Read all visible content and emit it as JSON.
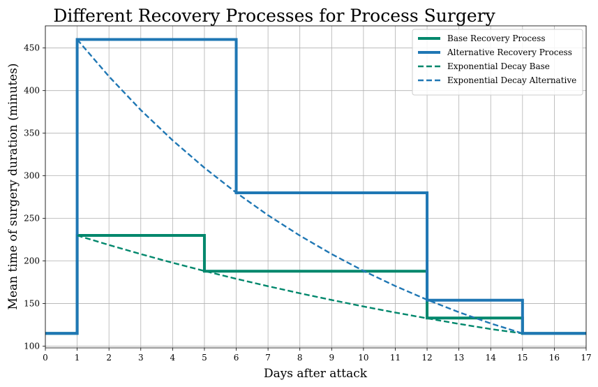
{
  "chart_data": {
    "type": "line",
    "title": "Different Recovery Processes for Process Surgery",
    "xlabel": "Days after attack",
    "ylabel": "Mean time of surgery duration (minutes)",
    "xlim": [
      0,
      17
    ],
    "ylim": [
      98,
      476
    ],
    "xticks": [
      0,
      1,
      2,
      3,
      4,
      5,
      6,
      7,
      8,
      9,
      10,
      11,
      12,
      13,
      14,
      15,
      16,
      17
    ],
    "yticks": [
      100,
      150,
      200,
      250,
      300,
      350,
      400,
      450
    ],
    "grid": true,
    "legend_position": "top-right",
    "series": [
      {
        "name": "Base Recovery Process",
        "style": "step",
        "color": "#00876c",
        "x": [
          0,
          1,
          1,
          5,
          5,
          12,
          12,
          15,
          15,
          17
        ],
        "y": [
          115,
          115,
          230,
          230,
          188,
          188,
          133,
          133,
          115,
          115
        ]
      },
      {
        "name": "Alternative Recovery Process",
        "style": "step",
        "color": "#1f77b4",
        "x": [
          0,
          1,
          1,
          6,
          6,
          12,
          12,
          15,
          15,
          17
        ],
        "y": [
          115,
          115,
          460,
          460,
          280,
          280,
          154,
          154,
          115,
          115
        ]
      },
      {
        "name": "Exponential Decay Base",
        "style": "dashed",
        "color": "#00876c",
        "x": [
          1,
          2,
          3,
          4,
          5,
          6,
          7,
          8,
          9,
          10,
          11,
          12,
          13,
          14,
          15
        ],
        "y": [
          230,
          218.8,
          208.1,
          197.9,
          188.3,
          179.1,
          170.4,
          162.1,
          154.2,
          146.6,
          139.5,
          132.7,
          126.2,
          120.1,
          115
        ]
      },
      {
        "name": "Exponential Decay Alternative",
        "style": "dashed",
        "color": "#1f77b4",
        "x": [
          1,
          2,
          3,
          4,
          5,
          6,
          7,
          8,
          9,
          10,
          11,
          12,
          13,
          14,
          15
        ],
        "y": [
          460,
          416.6,
          377.2,
          341.6,
          309.4,
          280.2,
          253.7,
          229.8,
          208.1,
          188.4,
          170.6,
          154.5,
          139.9,
          126.7,
          115
        ]
      }
    ]
  }
}
